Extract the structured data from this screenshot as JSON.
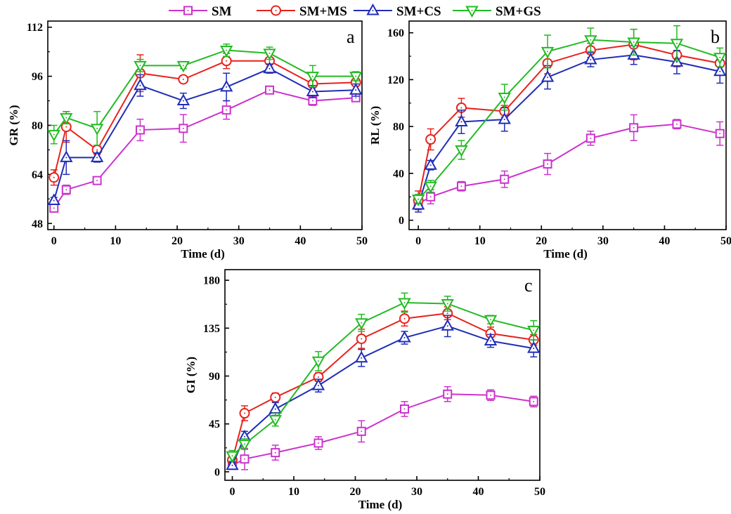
{
  "legend": {
    "items": [
      {
        "label": "SM",
        "color": "#CC33CC",
        "marker": "square"
      },
      {
        "label": "SM+MS",
        "color": "#E8221C",
        "marker": "circle"
      },
      {
        "label": "SM+CS",
        "color": "#1F2DB8",
        "marker": "triangle-up"
      },
      {
        "label": "SM+GS",
        "color": "#22BB22",
        "marker": "triangle-down"
      }
    ]
  },
  "chart_data": [
    {
      "type": "line",
      "panel_label": "a",
      "xlabel": "Time (d)",
      "ylabel": "GR (%)",
      "xlim": [
        -1,
        50
      ],
      "ylim": [
        46,
        114
      ],
      "xticks": [
        0,
        10,
        20,
        30,
        40,
        50
      ],
      "yticks": [
        48,
        64,
        80,
        96,
        112
      ],
      "x": [
        0,
        2,
        7,
        14,
        21,
        28,
        35,
        42,
        49
      ],
      "series": [
        {
          "name": "SM",
          "values": [
            53,
            59,
            62,
            78.5,
            79,
            85,
            91.5,
            88,
            89
          ],
          "errors": [
            1,
            1.5,
            1,
            3.5,
            4.5,
            3,
            1,
            1.5,
            1
          ]
        },
        {
          "name": "SM+MS",
          "values": [
            63,
            79.5,
            72,
            97,
            95,
            101,
            101,
            93.5,
            94
          ],
          "errors": [
            2.5,
            5,
            1.5,
            6,
            1,
            2.5,
            2,
            2.5,
            3
          ]
        },
        {
          "name": "SM+CS",
          "values": [
            55.5,
            69.5,
            69.5,
            93,
            88,
            92.5,
            98.5,
            91,
            91.5
          ],
          "errors": [
            1,
            5.5,
            1.5,
            3.5,
            2.5,
            4.5,
            1.5,
            2,
            2
          ]
        },
        {
          "name": "SM+GS",
          "values": [
            77,
            82.5,
            79,
            99.5,
            99.5,
            104.5,
            103.5,
            96,
            96
          ],
          "errors": [
            3,
            2,
            5.5,
            2,
            1,
            2,
            2,
            3.5,
            1.5
          ]
        }
      ]
    },
    {
      "type": "line",
      "panel_label": "b",
      "xlabel": "Time (d)",
      "ylabel": "RL (%)",
      "xlim": [
        -1.5,
        50
      ],
      "ylim": [
        -8,
        170
      ],
      "xticks": [
        0,
        10,
        20,
        30,
        40,
        50
      ],
      "yticks": [
        0,
        40,
        80,
        120,
        160
      ],
      "x": [
        0,
        2,
        7,
        14,
        21,
        28,
        35,
        42,
        49
      ],
      "series": [
        {
          "name": "SM",
          "values": [
            14,
            20,
            29,
            35,
            48,
            70,
            79,
            82,
            74
          ],
          "errors": [
            4,
            6,
            4,
            7,
            9,
            6,
            11,
            4,
            10
          ]
        },
        {
          "name": "SM+MS",
          "values": [
            17,
            69,
            96,
            93,
            134,
            145,
            150,
            141,
            134
          ],
          "errors": [
            8,
            9,
            8,
            5,
            9,
            6,
            13,
            10,
            6
          ]
        },
        {
          "name": "SM+CS",
          "values": [
            13,
            47,
            84,
            86,
            122,
            137,
            141,
            135,
            127
          ],
          "errors": [
            6,
            4,
            10,
            10,
            10,
            6,
            8,
            10,
            10
          ]
        },
        {
          "name": "SM+GS",
          "values": [
            18,
            29,
            60,
            105,
            144,
            154,
            152,
            151,
            139
          ],
          "errors": [
            4,
            5,
            8,
            11,
            14,
            10,
            11,
            15,
            8
          ]
        }
      ]
    },
    {
      "type": "line",
      "panel_label": "c",
      "xlabel": "Time (d)",
      "ylabel": "GI (%)",
      "xlim": [
        -1.2,
        50
      ],
      "ylim": [
        -8,
        190
      ],
      "xticks": [
        0,
        10,
        20,
        30,
        40,
        50
      ],
      "yticks": [
        0,
        45,
        90,
        135,
        180
      ],
      "x": [
        0,
        2,
        7,
        14,
        21,
        28,
        35,
        42,
        49
      ],
      "series": [
        {
          "name": "SM",
          "values": [
            6,
            12,
            18,
            27,
            38,
            59,
            73,
            72,
            66
          ],
          "errors": [
            3,
            10,
            7,
            6,
            10,
            7,
            7,
            5,
            5
          ]
        },
        {
          "name": "SM+MS",
          "values": [
            11,
            55,
            70,
            89,
            125,
            144,
            149,
            130,
            124
          ],
          "errors": [
            6,
            7,
            4,
            4,
            9,
            7,
            6,
            6,
            5
          ]
        },
        {
          "name": "SM+CS",
          "values": [
            6,
            33,
            59,
            81,
            107,
            126,
            137,
            123,
            116
          ],
          "errors": [
            3,
            5,
            6,
            6,
            8,
            6,
            10,
            6,
            8
          ]
        },
        {
          "name": "SM+GS",
          "values": [
            15,
            26,
            49,
            104,
            140,
            159,
            158,
            143,
            133
          ],
          "errors": [
            5,
            5,
            6,
            9,
            8,
            9,
            7,
            4,
            9
          ]
        }
      ]
    }
  ]
}
